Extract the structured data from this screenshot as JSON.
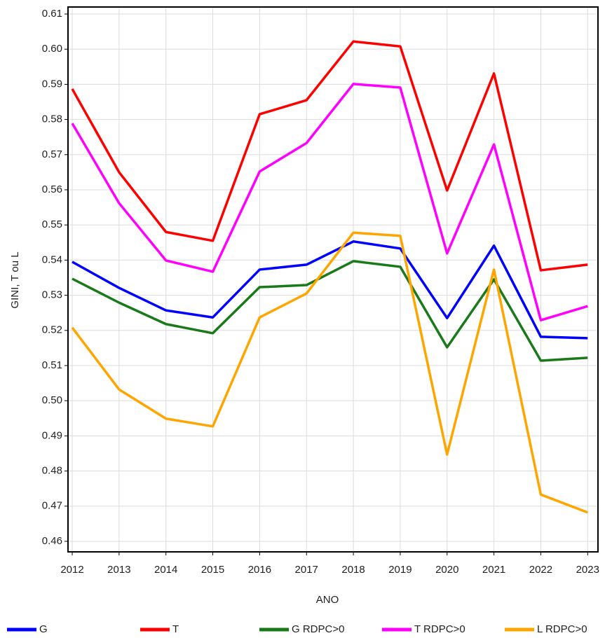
{
  "chart_data": {
    "type": "line",
    "x_label": "ANO",
    "y_label": "GINI, T ou L",
    "x": [
      2012,
      2013,
      2014,
      2015,
      2016,
      2017,
      2018,
      2019,
      2020,
      2021,
      2022,
      2023
    ],
    "xlim": [
      2011.91,
      2023.22
    ],
    "xticks": [
      2012,
      2013,
      2014,
      2015,
      2016,
      2017,
      2018,
      2019,
      2020,
      2021,
      2022,
      2023
    ],
    "ylim": [
      0.457,
      0.612
    ],
    "yticks": [
      0.46,
      0.47,
      0.48,
      0.49,
      {
        "value": 0.5,
        "label": "0.50"
      },
      0.51,
      0.52,
      0.53,
      0.54,
      0.55,
      0.56,
      0.57,
      0.58,
      0.59,
      {
        "value": 0.6,
        "label": "0.60"
      },
      0.61
    ],
    "grid": true,
    "series": [
      {
        "name": "G",
        "color": "#0000ff",
        "values": [
          0.5395,
          0.5321,
          0.5257,
          0.5237,
          0.5373,
          0.5387,
          0.5453,
          0.5433,
          0.5235,
          0.5441,
          0.5182,
          0.5178
        ]
      },
      {
        "name": "T",
        "color": "#ff0000",
        "values": [
          0.5887,
          0.565,
          0.548,
          0.5455,
          0.5815,
          0.5855,
          0.6022,
          0.6008,
          0.5598,
          0.5931,
          0.5371,
          0.5387
        ]
      },
      {
        "name": "G RDPC>0",
        "color": "#1a7a1a",
        "values": [
          0.5347,
          0.5279,
          0.5218,
          0.5192,
          0.5323,
          0.5329,
          0.5397,
          0.5381,
          0.5152,
          0.5345,
          0.5114,
          0.5122
        ]
      },
      {
        "name": "T RDPC>0",
        "color": "#ff00ff",
        "values": [
          0.5789,
          0.5562,
          0.5399,
          0.5367,
          0.5652,
          0.5733,
          0.5901,
          0.5891,
          0.5419,
          0.5729,
          0.5229,
          0.5269
        ]
      },
      {
        "name": "L RDPC>0",
        "color": "#ffa500",
        "values": [
          0.5208,
          0.5032,
          0.4949,
          0.4927,
          0.5237,
          0.5305,
          0.5478,
          0.5469,
          0.4847,
          0.5373,
          0.4733,
          0.4682
        ]
      }
    ]
  }
}
